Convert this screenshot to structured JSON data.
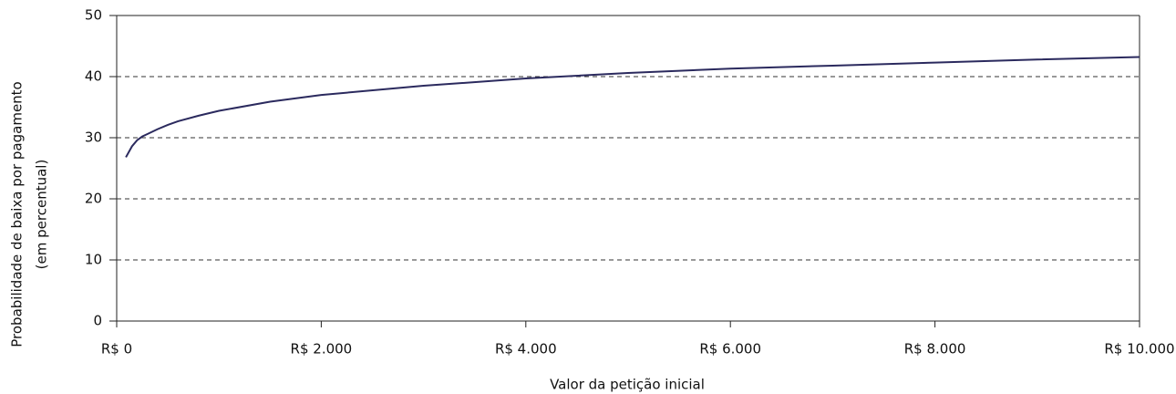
{
  "chart_data": {
    "type": "line",
    "xlabel": "Valor da petição inicial",
    "ylabel": [
      "Probabilidade de baixa por pagamento",
      "(em percentual)"
    ],
    "x": [
      90,
      150,
      200,
      250,
      300,
      400,
      500,
      600,
      800,
      1000,
      1500,
      2000,
      3000,
      4000,
      5000,
      6000,
      7000,
      8000,
      9000,
      10000
    ],
    "series": [
      {
        "color": "#2b2a5e",
        "values": [
          26.8,
          28.6,
          29.6,
          30.2,
          30.6,
          31.4,
          32.1,
          32.7,
          33.6,
          34.4,
          35.9,
          37.0,
          38.5,
          39.7,
          40.6,
          41.3,
          41.8,
          42.3,
          42.8,
          43.2
        ]
      }
    ],
    "xlim": [
      0,
      10000
    ],
    "xticks": [
      {
        "value": 0,
        "label": "R$ 0"
      },
      {
        "value": 2000,
        "label": "R$ 2.000"
      },
      {
        "value": 4000,
        "label": "R$ 4.000"
      },
      {
        "value": 6000,
        "label": "R$ 6.000"
      },
      {
        "value": 8000,
        "label": "R$ 8.000"
      },
      {
        "value": 10000,
        "label": "R$ 10.000"
      }
    ],
    "ylim": [
      0,
      50
    ],
    "yticks": [
      0,
      10,
      20,
      30,
      40,
      50
    ],
    "grid": true
  }
}
